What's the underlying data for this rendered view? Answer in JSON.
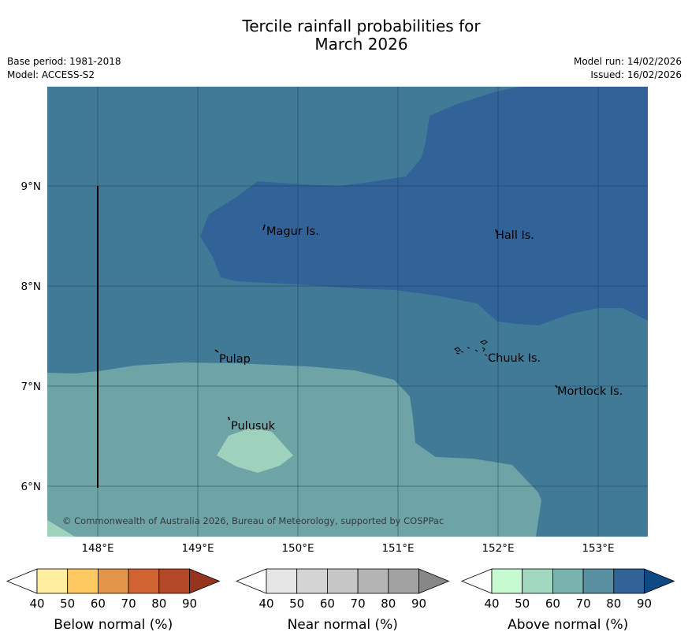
{
  "title": {
    "line1": "Tercile rainfall probabilities for",
    "line2": "March 2026"
  },
  "meta": {
    "base_period": "Base period: 1981-2018",
    "model": "Model: ACCESS-S2",
    "model_run": "Model run: 14/02/2026",
    "issued": "Issued: 16/02/2026"
  },
  "map": {
    "longitude_ticks": [
      "148°E",
      "149°E",
      "150°E",
      "151°E",
      "152°E",
      "153°E"
    ],
    "latitude_ticks": [
      "9°N",
      "8°N",
      "7°N",
      "6°N"
    ],
    "places": {
      "magur": "Magur Is.",
      "hall": "Hall Is.",
      "pulap": "Pulap",
      "chuuk": "Chuuk Is.",
      "mortlock": "Mortlock Is.",
      "pulusuk": "Pulusuk"
    },
    "copyright": "© Commonwealth of Australia 2026, Bureau of Meteorology, supported by COSPPac",
    "colors": {
      "above_60_70": "#6fa4a7",
      "above_70_80": "#417a97",
      "above_80_90": "#316399",
      "above_50_60": "#9fd2bc"
    }
  },
  "colorbars": {
    "below": {
      "title": "Below normal (%)",
      "ticks": [
        "40",
        "50",
        "60",
        "70",
        "80",
        "90"
      ],
      "colors": [
        "#ffeda0",
        "#fec961",
        "#e3954a",
        "#cf6331",
        "#b24826",
        "#973420"
      ]
    },
    "near": {
      "title": "Near normal (%)",
      "ticks": [
        "40",
        "50",
        "60",
        "70",
        "80",
        "90"
      ],
      "colors": [
        "#e6e6e6",
        "#d4d4d4",
        "#c6c6c6",
        "#b4b4b4",
        "#a2a2a2",
        "#878787"
      ]
    },
    "above": {
      "title": "Above normal (%)",
      "ticks": [
        "40",
        "50",
        "60",
        "70",
        "80",
        "90"
      ],
      "colors": [
        "#c6fad0",
        "#a3d8c0",
        "#78b3ad",
        "#5990a2",
        "#316399",
        "#0f4a83"
      ]
    }
  }
}
